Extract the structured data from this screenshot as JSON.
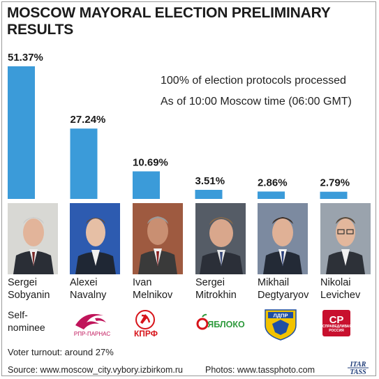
{
  "title": "MOSCOW MAYORAL ELECTION PRELIMINARY RESULTS",
  "notes": {
    "processed": "100% of election protocols processed",
    "as_of": "As of 10:00 Moscow time (06:00 GMT)"
  },
  "chart_data": {
    "type": "bar",
    "title": "MOSCOW MAYORAL ELECTION PRELIMINARY RESULTS",
    "categories": [
      "Sergei Sobyanin",
      "Alexei Navalny",
      "Ivan Melnikov",
      "Sergei Mitrokhin",
      "Mikhail Degtyaryov",
      "Nikolai Levichev"
    ],
    "values": [
      51.37,
      27.24,
      10.69,
      3.51,
      2.86,
      2.79
    ],
    "value_labels": [
      "51.37%",
      "27.24%",
      "10.69%",
      "3.51%",
      "2.86%",
      "2.79%"
    ],
    "unit": "%",
    "ylim": [
      0,
      51.37
    ],
    "grid": false,
    "bar_color": "#3b9bd9"
  },
  "candidates": [
    {
      "first": "Sergei",
      "last": "Sobyanin",
      "party": "Self-\nnominee",
      "logo": "self-nominee"
    },
    {
      "first": "Alexei",
      "last": "Navalny",
      "party": "РПР-ПАРНАС",
      "logo": "rpr-parnas-logo"
    },
    {
      "first": "Ivan",
      "last": "Melnikov",
      "party": "КПРФ",
      "logo": "kprf-logo"
    },
    {
      "first": "Sergei",
      "last": "Mitrokhin",
      "party": "ЯБЛОКО",
      "logo": "yabloko-logo"
    },
    {
      "first": "Mikhail",
      "last": "Degtyaryov",
      "party": "ЛДПР",
      "logo": "ldpr-logo"
    },
    {
      "first": "Nikolai",
      "last": "Levichev",
      "party": "СПРАВЕДЛИВАЯ РОССИЯ",
      "logo": "sr-logo"
    }
  ],
  "turnout": "Voter turnout: around 27%",
  "source": "Source: www.moscow_city.vybory.izbirkom.ru",
  "photos": "Photos: www.tassphoto.com",
  "agency": {
    "line1": "ITAR",
    "line2": "TASS"
  },
  "colors": {
    "bar": "#3b9bd9",
    "kprf_red": "#d7141a",
    "yabloko_green": "#2e9a3c",
    "sr_red": "#c8102e",
    "ldpr_blue": "#1f4fa3",
    "ldpr_gold": "#f2c300"
  }
}
